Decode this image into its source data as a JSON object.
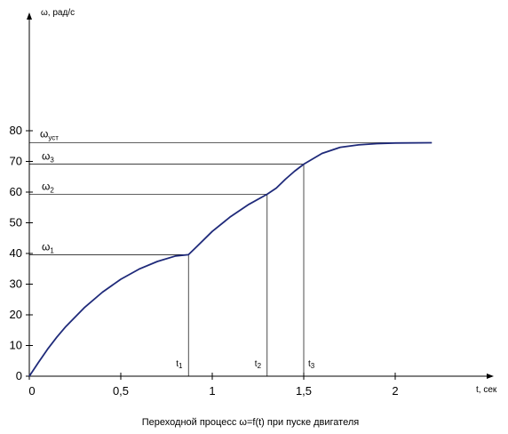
{
  "chart_data": {
    "type": "line",
    "title": "",
    "caption": "Переходной процесс ω=f(t) при пуске двигателя",
    "ylabel": "ω, рад/с",
    "xlabel": "t, сек",
    "xlim": [
      0,
      2.4
    ],
    "ylim": [
      0,
      87
    ],
    "x_ticks": [
      {
        "value": 0,
        "label": "0"
      },
      {
        "value": 0.5,
        "label": "0,5"
      },
      {
        "value": 1,
        "label": "1"
      },
      {
        "value": 1.5,
        "label": "1,5"
      },
      {
        "value": 2,
        "label": "2"
      }
    ],
    "y_ticks": [
      {
        "value": 0,
        "label": "0"
      },
      {
        "value": 10,
        "label": "10"
      },
      {
        "value": 20,
        "label": "20"
      },
      {
        "value": 30,
        "label": "30"
      },
      {
        "value": 40,
        "label": "40"
      },
      {
        "value": 50,
        "label": "50"
      },
      {
        "value": 60,
        "label": "60"
      },
      {
        "value": 70,
        "label": "70"
      },
      {
        "value": 80,
        "label": "80"
      }
    ],
    "grid": false,
    "series": [
      {
        "color": "#1f2a7a",
        "points": [
          [
            0,
            0
          ],
          [
            0.05,
            4.5
          ],
          [
            0.1,
            8.8
          ],
          [
            0.15,
            12.7
          ],
          [
            0.2,
            16.2
          ],
          [
            0.3,
            22.3
          ],
          [
            0.4,
            27.4
          ],
          [
            0.5,
            31.6
          ],
          [
            0.6,
            34.9
          ],
          [
            0.7,
            37.4
          ],
          [
            0.8,
            39.2
          ],
          [
            0.87,
            39.6
          ],
          [
            0.92,
            42.5
          ],
          [
            1.0,
            47.2
          ],
          [
            1.1,
            52.0
          ],
          [
            1.2,
            56.0
          ],
          [
            1.3,
            59.3
          ],
          [
            1.35,
            61.3
          ],
          [
            1.4,
            64.2
          ],
          [
            1.45,
            66.8
          ],
          [
            1.5,
            69.1
          ],
          [
            1.6,
            72.6
          ],
          [
            1.7,
            74.6
          ],
          [
            1.8,
            75.4
          ],
          [
            1.9,
            75.8
          ],
          [
            2.0,
            76.0
          ],
          [
            2.2,
            76.1
          ]
        ]
      }
    ],
    "levels": [
      {
        "name": "ω",
        "sub": "1",
        "value": 39.6,
        "t": 0.87,
        "t_label": "t",
        "t_sub": "1"
      },
      {
        "name": "ω",
        "sub": "2",
        "value": 59.3,
        "t": 1.3,
        "t_label": "t",
        "t_sub": "2"
      },
      {
        "name": "ω",
        "sub": "3",
        "value": 69.1,
        "t": 1.5,
        "t_label": "t",
        "t_sub": "3"
      }
    ],
    "steady": {
      "name": "ω",
      "sub": "уст",
      "value": 76.1
    },
    "line_color": "#1f2a7a"
  }
}
